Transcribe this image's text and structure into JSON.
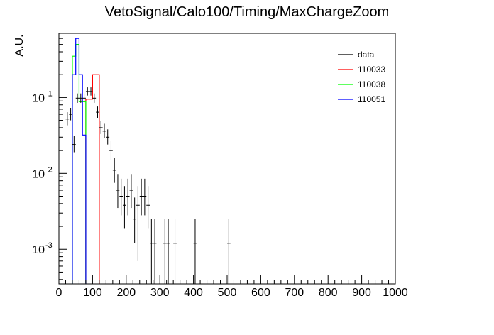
{
  "chart_data": {
    "type": "histogram",
    "title": "VetoSignal/Calo100/Timing/MaxChargeZoom",
    "xlabel": "",
    "ylabel": "A.U.",
    "xlim": [
      0,
      1000
    ],
    "ylim": [
      0.00035,
      0.7
    ],
    "yscale": "log",
    "grid": false,
    "legend_position": "top-right",
    "xticks": [
      0,
      100,
      200,
      300,
      400,
      500,
      600,
      700,
      800,
      900,
      1000
    ],
    "yticks": [
      {
        "base": "10",
        "exp": "-1",
        "value": 0.1
      },
      {
        "base": "10",
        "exp": "-2",
        "value": 0.01
      },
      {
        "base": "10",
        "exp": "-3",
        "value": 0.001
      }
    ],
    "bin_width": 10,
    "series": [
      {
        "name": "data",
        "color": "#000000",
        "style": "errorbars",
        "points": [
          {
            "x": 25,
            "y": 0.052,
            "lo": 0.043,
            "hi": 0.064
          },
          {
            "x": 35,
            "y": 0.06,
            "lo": 0.05,
            "hi": 0.073
          },
          {
            "x": 45,
            "y": 0.024,
            "lo": 0.019,
            "hi": 0.031
          },
          {
            "x": 55,
            "y": 0.098,
            "lo": 0.085,
            "hi": 0.113
          },
          {
            "x": 65,
            "y": 0.098,
            "lo": 0.085,
            "hi": 0.113
          },
          {
            "x": 75,
            "y": 0.098,
            "lo": 0.085,
            "hi": 0.113
          },
          {
            "x": 85,
            "y": 0.12,
            "lo": 0.106,
            "hi": 0.136
          },
          {
            "x": 95,
            "y": 0.12,
            "lo": 0.106,
            "hi": 0.136
          },
          {
            "x": 105,
            "y": 0.098,
            "lo": 0.085,
            "hi": 0.113
          },
          {
            "x": 115,
            "y": 0.064,
            "lo": 0.054,
            "hi": 0.076
          },
          {
            "x": 125,
            "y": 0.04,
            "lo": 0.033,
            "hi": 0.049
          },
          {
            "x": 135,
            "y": 0.036,
            "lo": 0.029,
            "hi": 0.045
          },
          {
            "x": 145,
            "y": 0.03,
            "lo": 0.024,
            "hi": 0.038
          },
          {
            "x": 155,
            "y": 0.02,
            "lo": 0.015,
            "hi": 0.027
          },
          {
            "x": 165,
            "y": 0.011,
            "lo": 0.0075,
            "hi": 0.016
          },
          {
            "x": 175,
            "y": 0.006,
            "lo": 0.0035,
            "hi": 0.0098
          },
          {
            "x": 185,
            "y": 0.005,
            "lo": 0.0028,
            "hi": 0.0085
          },
          {
            "x": 195,
            "y": 0.0038,
            "lo": 0.0019,
            "hi": 0.0068
          },
          {
            "x": 205,
            "y": 0.005,
            "lo": 0.0028,
            "hi": 0.0085
          },
          {
            "x": 215,
            "y": 0.006,
            "lo": 0.0035,
            "hi": 0.0098
          },
          {
            "x": 225,
            "y": 0.0025,
            "lo": 0.0012,
            "hi": 0.0048
          },
          {
            "x": 235,
            "y": 0.0038,
            "lo": 0.0007,
            "hi": 0.0068
          },
          {
            "x": 245,
            "y": 0.005,
            "lo": 0.0028,
            "hi": 0.0085
          },
          {
            "x": 255,
            "y": 0.005,
            "lo": 0.0028,
            "hi": 0.0085
          },
          {
            "x": 265,
            "y": 0.0038,
            "lo": 0.0019,
            "hi": 0.0068
          },
          {
            "x": 275,
            "y": 0.0012,
            "lo": 0.00035,
            "hi": 0.0025
          },
          {
            "x": 285,
            "y": 0.0012,
            "lo": 0.00035,
            "hi": 0.0025
          },
          {
            "x": 315,
            "y": 0.0012,
            "lo": 0.00035,
            "hi": 0.0025
          },
          {
            "x": 325,
            "y": 0.0012,
            "lo": 0.00035,
            "hi": 0.0025
          },
          {
            "x": 345,
            "y": 0.0012,
            "lo": 0.00035,
            "hi": 0.0025
          },
          {
            "x": 405,
            "y": 0.0012,
            "lo": 0.00035,
            "hi": 0.0025
          },
          {
            "x": 505,
            "y": 0.0012,
            "lo": 0.00035,
            "hi": 0.0025
          }
        ]
      },
      {
        "name": "110033",
        "color": "#ff0000",
        "style": "step",
        "bins": [
          {
            "x0": 80,
            "x1": 90,
            "y": 0.095
          },
          {
            "x0": 90,
            "x1": 100,
            "y": 0.095
          },
          {
            "x0": 100,
            "x1": 110,
            "y": 0.2
          },
          {
            "x0": 110,
            "x1": 120,
            "y": 0.2
          }
        ]
      },
      {
        "name": "110038",
        "color": "#00ff00",
        "style": "step",
        "bins": [
          {
            "x0": 40,
            "x1": 50,
            "y": 0.35
          },
          {
            "x0": 50,
            "x1": 60,
            "y": 0.5
          },
          {
            "x0": 60,
            "x1": 70,
            "y": 0.088
          },
          {
            "x0": 70,
            "x1": 80,
            "y": 0.088
          }
        ]
      },
      {
        "name": "110051",
        "color": "#0000ff",
        "style": "step",
        "bins": [
          {
            "x0": 40,
            "x1": 50,
            "y": 0.2
          },
          {
            "x0": 50,
            "x1": 60,
            "y": 0.6
          },
          {
            "x0": 60,
            "x1": 70,
            "y": 0.2
          },
          {
            "x0": 70,
            "x1": 80,
            "y": 0.032
          }
        ]
      }
    ]
  }
}
